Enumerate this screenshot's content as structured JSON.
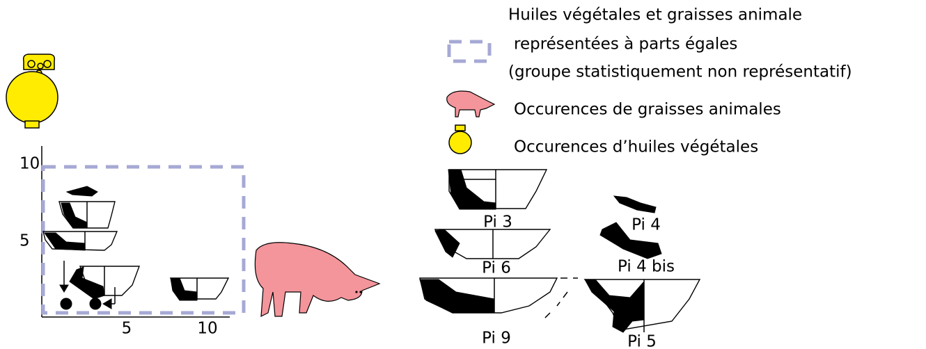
{
  "legend": {
    "mixed": [
      "Huiles végétales et graisses animale",
      "représentées à parts égales",
      "(groupe statistiquement non représentatif)"
    ],
    "animal": "Occurences de graisses animales",
    "vegetal": "Occurences d’huiles végétales"
  },
  "axes": {
    "y_ticks": [
      "10",
      "5"
    ],
    "x_ticks": [
      "5",
      "10"
    ]
  },
  "sherds": [
    "Pi 3",
    "Pi 4",
    "Pi 6",
    "Pi 4 bis",
    "Pi 9",
    "Pi 5"
  ]
}
